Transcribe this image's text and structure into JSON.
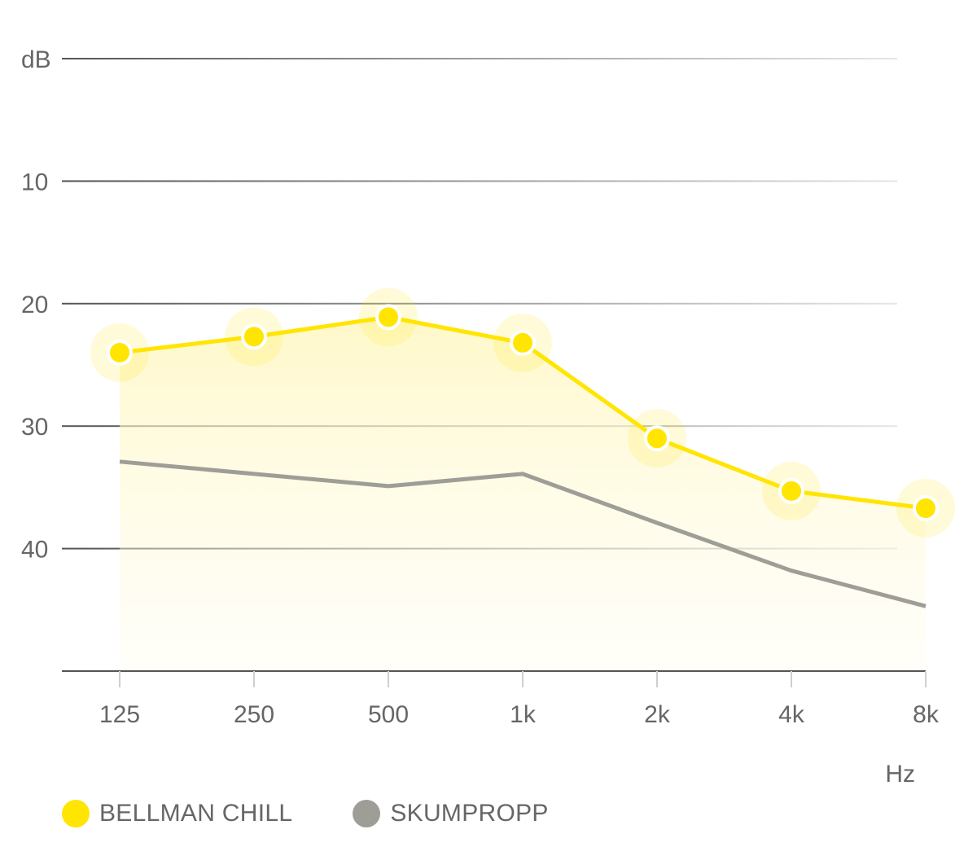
{
  "chart_data": {
    "type": "line",
    "categories": [
      "125",
      "250",
      "500",
      "1k",
      "2k",
      "4k",
      "8k"
    ],
    "y_axis": {
      "label": "dB",
      "ticks": [
        "10",
        "20",
        "30",
        "40"
      ],
      "tick_values": [
        10,
        20,
        30,
        40
      ],
      "range": [
        0,
        50
      ],
      "inverted": true
    },
    "x_axis": {
      "label": "Hz"
    },
    "grid": true,
    "legend_position": "bottom-left",
    "series": [
      {
        "name": "BELLMAN CHILL",
        "values": [
          24,
          22.7,
          21.1,
          23.2,
          31,
          35.3,
          36.7
        ],
        "color": "#FFE500",
        "markers": true,
        "fill": true
      },
      {
        "name": "SKUMPROPP",
        "values": [
          32.9,
          33.9,
          34.9,
          33.9,
          37.9,
          41.8,
          44.7
        ],
        "color": "#9E9E97",
        "markers": false,
        "fill": false
      }
    ]
  }
}
